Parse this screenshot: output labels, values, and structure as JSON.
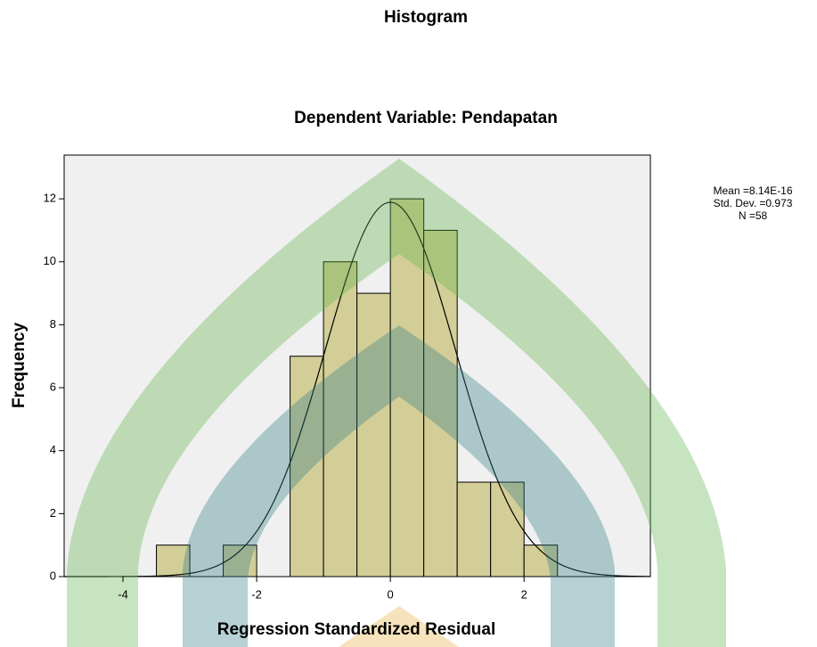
{
  "chart_data": {
    "type": "histogram",
    "title": "Histogram",
    "subtitle": "Dependent Variable: Pendapatan",
    "xlabel": "Regression Standardized Residual",
    "ylabel": "Frequency",
    "bins": [
      -3.5,
      -3.0,
      -2.5,
      -2.0,
      -1.5,
      -1.0,
      -0.5,
      0.0,
      0.5,
      1.0,
      1.5,
      2.0,
      2.5
    ],
    "values": [
      1,
      0,
      1,
      0,
      7,
      10,
      9,
      12,
      11,
      3,
      3,
      1
    ],
    "color": "#d3ce97",
    "xlim": [
      -4.88,
      3.89
    ],
    "xticks": [
      -4,
      -2,
      0,
      2
    ],
    "ylim": [
      0,
      13.39
    ],
    "yticks": [
      0,
      2,
      4,
      6,
      8,
      10,
      12
    ],
    "stats": {
      "mean": {
        "value": 8.14e-16,
        "label": "Mean =8.14E-16"
      },
      "sd": {
        "value": 0.973,
        "label": "Std. Dev. =0.973"
      },
      "n": {
        "value": 58,
        "label": "N =58"
      }
    }
  }
}
